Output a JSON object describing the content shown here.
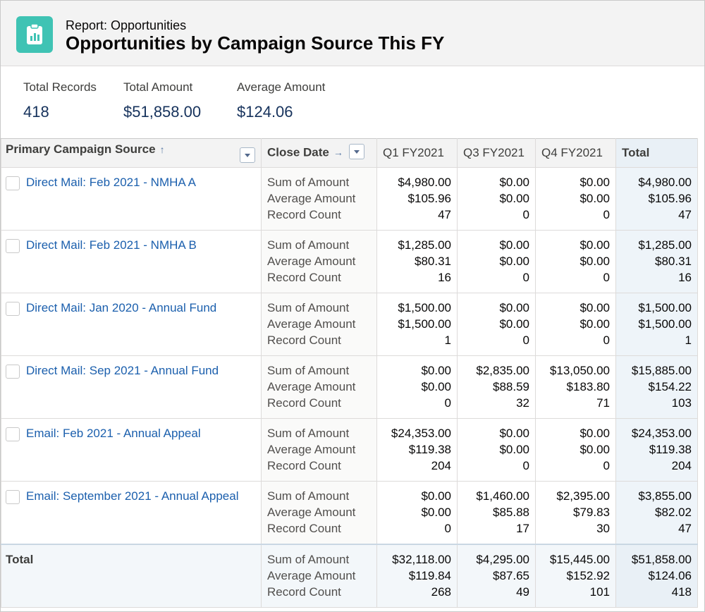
{
  "header": {
    "subtitle": "Report: Opportunities",
    "title": "Opportunities by Campaign Source This FY"
  },
  "summary": [
    {
      "label": "Total Records",
      "value": "418"
    },
    {
      "label": "Total Amount",
      "value": "$51,858.00"
    },
    {
      "label": "Average Amount",
      "value": "$124.06"
    }
  ],
  "table": {
    "columns": [
      "Primary Campaign Source",
      "Close Date",
      "Q1 FY2021",
      "Q3 FY2021",
      "Q4 FY2021",
      "Total"
    ],
    "measures": [
      "Sum of Amount",
      "Average Amount",
      "Record Count"
    ],
    "rows": [
      {
        "source": "Direct Mail: Feb 2021 - NMHA A",
        "cells": [
          [
            "$4,980.00",
            "$105.96",
            "47"
          ],
          [
            "$0.00",
            "$0.00",
            "0"
          ],
          [
            "$0.00",
            "$0.00",
            "0"
          ],
          [
            "$4,980.00",
            "$105.96",
            "47"
          ]
        ]
      },
      {
        "source": "Direct Mail: Feb 2021 - NMHA B",
        "cells": [
          [
            "$1,285.00",
            "$80.31",
            "16"
          ],
          [
            "$0.00",
            "$0.00",
            "0"
          ],
          [
            "$0.00",
            "$0.00",
            "0"
          ],
          [
            "$1,285.00",
            "$80.31",
            "16"
          ]
        ]
      },
      {
        "source": "Direct Mail: Jan 2020 - Annual Fund",
        "cells": [
          [
            "$1,500.00",
            "$1,500.00",
            "1"
          ],
          [
            "$0.00",
            "$0.00",
            "0"
          ],
          [
            "$0.00",
            "$0.00",
            "0"
          ],
          [
            "$1,500.00",
            "$1,500.00",
            "1"
          ]
        ]
      },
      {
        "source": "Direct Mail: Sep 2021 - Annual Fund",
        "cells": [
          [
            "$0.00",
            "$0.00",
            "0"
          ],
          [
            "$2,835.00",
            "$88.59",
            "32"
          ],
          [
            "$13,050.00",
            "$183.80",
            "71"
          ],
          [
            "$15,885.00",
            "$154.22",
            "103"
          ]
        ]
      },
      {
        "source": "Email: Feb 2021 - Annual Appeal",
        "cells": [
          [
            "$24,353.00",
            "$119.38",
            "204"
          ],
          [
            "$0.00",
            "$0.00",
            "0"
          ],
          [
            "$0.00",
            "$0.00",
            "0"
          ],
          [
            "$24,353.00",
            "$119.38",
            "204"
          ]
        ]
      },
      {
        "source": "Email: September 2021 - Annual Appeal",
        "cells": [
          [
            "$0.00",
            "$0.00",
            "0"
          ],
          [
            "$1,460.00",
            "$85.88",
            "17"
          ],
          [
            "$2,395.00",
            "$79.83",
            "30"
          ],
          [
            "$3,855.00",
            "$82.02",
            "47"
          ]
        ]
      }
    ],
    "total": {
      "label": "Total",
      "cells": [
        [
          "$32,118.00",
          "$119.84",
          "268"
        ],
        [
          "$4,295.00",
          "$87.65",
          "49"
        ],
        [
          "$15,445.00",
          "$152.92",
          "101"
        ],
        [
          "$51,858.00",
          "$124.06",
          "418"
        ]
      ]
    }
  }
}
